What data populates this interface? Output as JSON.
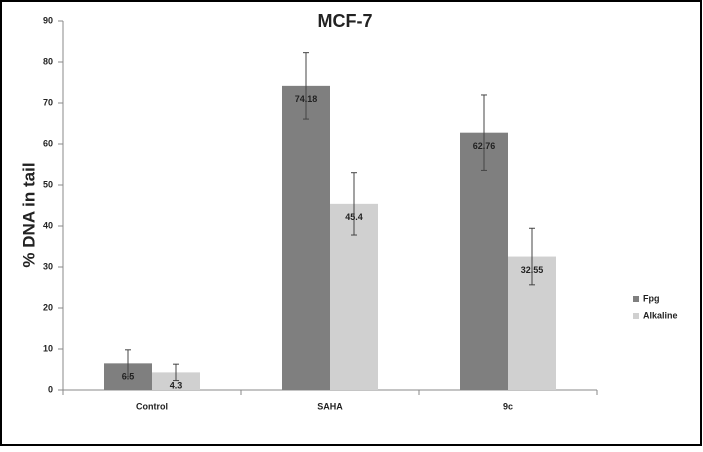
{
  "chart_data": {
    "type": "bar",
    "title": "MCF-7",
    "y_label": "% DNA in tail",
    "categories": [
      "Control",
      "SAHA",
      "9c"
    ],
    "series": [
      {
        "name": "Fpg",
        "color": "#7f7f7f",
        "values": [
          6.5,
          74.18,
          62.76
        ],
        "errors": [
          3.3,
          8.1,
          9.2
        ]
      },
      {
        "name": "Alkaline",
        "color": "#d0d0d0",
        "values": [
          4.3,
          45.4,
          32.55
        ],
        "errors": [
          2,
          7.6,
          6.9
        ]
      }
    ],
    "ylim": [
      0,
      90
    ],
    "yticks": [
      0,
      10,
      20,
      30,
      40,
      50,
      60,
      70,
      80,
      90
    ],
    "legend": "right"
  }
}
